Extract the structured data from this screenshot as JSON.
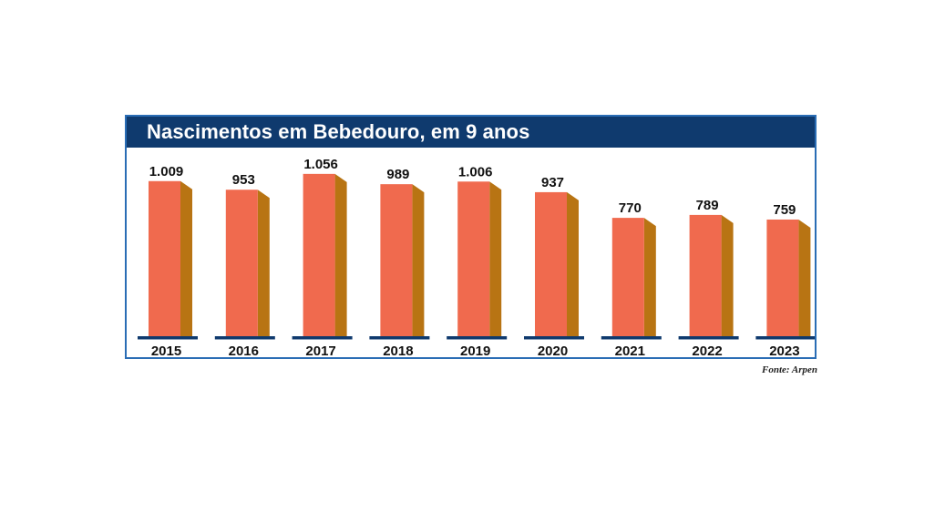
{
  "chart_data": {
    "type": "bar",
    "title": "Nascimentos em Bebedouro, em 9 anos",
    "categories": [
      "2015",
      "2016",
      "2017",
      "2018",
      "2019",
      "2020",
      "2021",
      "2022",
      "2023"
    ],
    "values": [
      1009,
      953,
      1056,
      989,
      1006,
      937,
      770,
      789,
      759
    ],
    "value_labels": [
      "1.009",
      "953",
      "1.056",
      "989",
      "1.006",
      "937",
      "770",
      "789",
      "759"
    ],
    "xlabel": "",
    "ylabel": "",
    "grid": false,
    "legend": "none"
  },
  "source": "Fonte: Arpen",
  "colors": {
    "header": "#0f3a6e",
    "frame_border": "#2a6db5",
    "bar_front": "#f06a4e",
    "bar_side": "#b87413",
    "bar_top": "#f59a7e",
    "baseline": "#0f3a6e"
  }
}
